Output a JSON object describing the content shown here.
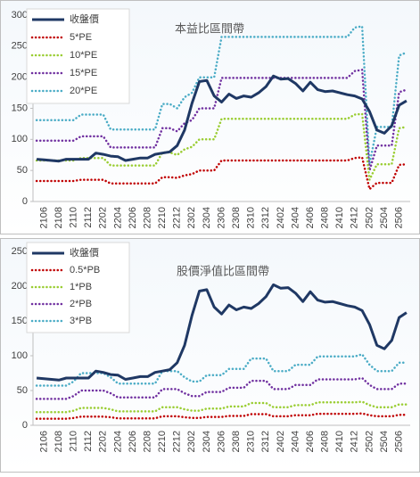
{
  "chart_data": [
    {
      "type": "line",
      "title": "本益比區間帶",
      "categories": [
        null,
        "2106",
        null,
        "2108",
        null,
        "2110",
        null,
        "2112",
        null,
        "2202",
        null,
        "2204",
        null,
        "2206",
        null,
        "2208",
        null,
        "2210",
        null,
        "2212",
        null,
        "2302",
        null,
        "2304",
        null,
        "2306",
        null,
        "2308",
        null,
        "2310",
        null,
        "2312",
        null,
        "2402",
        null,
        "2404",
        null,
        "2406",
        null,
        "2408",
        null,
        "2410",
        null,
        "2412",
        null,
        "2502",
        null,
        "2504",
        null,
        "2506",
        null
      ],
      "ylim": [
        0,
        300
      ],
      "yticks": [
        0,
        50,
        100,
        150,
        200,
        250,
        300
      ],
      "legend": "upper left",
      "series": [
        {
          "name": "收盤價",
          "color": "#1f3864",
          "style": "solid",
          "values": [
            68,
            67,
            66,
            65,
            68,
            68,
            68,
            68,
            78,
            76,
            73,
            72,
            66,
            68,
            70,
            70,
            76,
            78,
            80,
            90,
            115,
            158,
            193,
            195,
            170,
            160,
            173,
            166,
            170,
            168,
            175,
            185,
            202,
            197,
            198,
            190,
            178,
            192,
            180,
            177,
            178,
            175,
            172,
            170,
            165,
            145,
            115,
            110,
            122,
            155,
            162
          ]
        },
        {
          "name": "5*PE",
          "color": "#c00000",
          "style": "dotted",
          "values": [
            33,
            33,
            33,
            33,
            33,
            33,
            35,
            35,
            35,
            35,
            29,
            29,
            29,
            29,
            29,
            29,
            29,
            39,
            39,
            38,
            42,
            44,
            50,
            50,
            50,
            66,
            66,
            66,
            66,
            66,
            66,
            66,
            66,
            66,
            66,
            66,
            66,
            66,
            66,
            66,
            66,
            66,
            66,
            70,
            71,
            20,
            30,
            30,
            30,
            59,
            60
          ]
        },
        {
          "name": "10*PE",
          "color": "#9acd32",
          "style": "dotted",
          "values": [
            66,
            66,
            66,
            66,
            66,
            66,
            70,
            70,
            70,
            70,
            58,
            58,
            58,
            58,
            58,
            58,
            58,
            79,
            79,
            75,
            84,
            88,
            100,
            100,
            100,
            133,
            133,
            133,
            133,
            133,
            133,
            133,
            133,
            133,
            133,
            133,
            133,
            133,
            133,
            133,
            133,
            133,
            133,
            140,
            141,
            35,
            60,
            60,
            60,
            118,
            120
          ]
        },
        {
          "name": "15*PE",
          "color": "#7030a0",
          "style": "dotted",
          "values": [
            98,
            98,
            98,
            98,
            98,
            98,
            105,
            105,
            105,
            105,
            87,
            87,
            87,
            87,
            87,
            87,
            87,
            118,
            118,
            113,
            126,
            131,
            150,
            150,
            150,
            199,
            199,
            199,
            199,
            199,
            199,
            199,
            199,
            199,
            199,
            199,
            199,
            199,
            199,
            199,
            199,
            199,
            199,
            210,
            212,
            50,
            90,
            90,
            90,
            176,
            180
          ]
        },
        {
          "name": "20*PE",
          "color": "#4bacc6",
          "style": "dotted",
          "values": [
            131,
            131,
            131,
            131,
            131,
            131,
            140,
            140,
            140,
            140,
            116,
            116,
            116,
            116,
            116,
            116,
            116,
            157,
            157,
            150,
            168,
            175,
            200,
            200,
            200,
            265,
            265,
            265,
            265,
            265,
            265,
            265,
            265,
            265,
            265,
            265,
            265,
            265,
            265,
            265,
            265,
            265,
            265,
            280,
            282,
            60,
            120,
            120,
            120,
            235,
            240
          ]
        }
      ]
    },
    {
      "type": "line",
      "title": "股價淨值比區間帶",
      "categories": [
        null,
        "2106",
        null,
        "2108",
        null,
        "2110",
        null,
        "2112",
        null,
        "2202",
        null,
        "2204",
        null,
        "2206",
        null,
        "2208",
        null,
        "2210",
        null,
        "2212",
        null,
        "2302",
        null,
        "2304",
        null,
        "2306",
        null,
        "2308",
        null,
        "2310",
        null,
        "2312",
        null,
        "2402",
        null,
        "2404",
        null,
        "2406",
        null,
        "2408",
        null,
        "2410",
        null,
        "2412",
        null,
        "2502",
        null,
        "2504",
        null,
        "2506",
        null
      ],
      "ylim": [
        0,
        250
      ],
      "yticks": [
        0,
        50,
        100,
        150,
        200,
        250
      ],
      "legend": "upper left",
      "series": [
        {
          "name": "收盤價",
          "color": "#1f3864",
          "style": "solid",
          "values": [
            68,
            67,
            66,
            65,
            68,
            68,
            68,
            68,
            78,
            76,
            73,
            72,
            66,
            68,
            70,
            70,
            76,
            78,
            80,
            90,
            115,
            158,
            193,
            195,
            170,
            160,
            173,
            166,
            170,
            168,
            175,
            185,
            202,
            197,
            198,
            190,
            178,
            192,
            180,
            177,
            178,
            175,
            172,
            170,
            165,
            145,
            115,
            110,
            122,
            155,
            162
          ]
        },
        {
          "name": "0.5*PB",
          "color": "#c00000",
          "style": "dotted",
          "values": [
            9.5,
            9.5,
            9.5,
            9.5,
            9.5,
            10.5,
            12.5,
            12.5,
            12.5,
            12.5,
            11.5,
            10,
            10,
            10,
            10,
            10,
            10,
            13,
            13,
            13,
            11.5,
            10.5,
            10.5,
            12,
            12,
            12,
            13.5,
            13.5,
            13.5,
            16,
            16,
            16,
            13,
            13,
            13,
            14.5,
            14.5,
            14.5,
            16.5,
            16.5,
            16.5,
            16.5,
            16.5,
            16.5,
            17,
            14.5,
            13,
            13,
            13,
            15,
            15
          ]
        },
        {
          "name": "1*PB",
          "color": "#9acd32",
          "style": "dotted",
          "values": [
            19,
            19,
            19,
            19,
            19,
            21,
            25,
            25,
            25,
            25,
            23,
            20,
            20,
            20,
            20,
            20,
            20,
            26,
            26,
            26,
            23,
            21,
            21,
            24,
            24,
            24,
            27,
            27,
            27,
            32,
            32,
            32,
            26,
            26,
            26,
            29,
            29,
            29,
            33,
            33,
            33,
            33,
            33,
            33,
            34,
            29,
            26,
            26,
            26,
            30,
            30
          ]
        },
        {
          "name": "2*PB",
          "color": "#7030a0",
          "style": "dotted",
          "values": [
            38,
            38,
            38,
            38,
            38,
            42,
            50,
            50,
            50,
            50,
            46,
            40,
            40,
            40,
            40,
            40,
            40,
            52,
            52,
            52,
            46,
            42,
            42,
            48,
            48,
            48,
            54,
            54,
            54,
            64,
            64,
            64,
            52,
            52,
            52,
            58,
            58,
            58,
            66,
            66,
            66,
            66,
            66,
            66,
            68,
            58,
            52,
            52,
            52,
            60,
            60
          ]
        },
        {
          "name": "3*PB",
          "color": "#4bacc6",
          "style": "dotted",
          "values": [
            57,
            57,
            57,
            57,
            57,
            63,
            75,
            75,
            75,
            75,
            69,
            60,
            60,
            60,
            60,
            60,
            60,
            78,
            78,
            78,
            69,
            63,
            63,
            72,
            72,
            72,
            81,
            81,
            81,
            96,
            96,
            96,
            78,
            78,
            78,
            87,
            87,
            87,
            99,
            99,
            99,
            99,
            99,
            99,
            102,
            87,
            78,
            78,
            78,
            90,
            90
          ]
        }
      ]
    }
  ]
}
